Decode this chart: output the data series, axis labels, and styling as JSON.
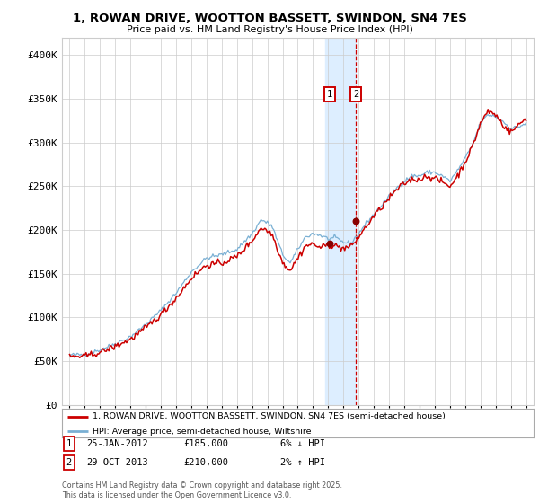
{
  "title": "1, ROWAN DRIVE, WOOTTON BASSETT, SWINDON, SN4 7ES",
  "subtitle": "Price paid vs. HM Land Registry's House Price Index (HPI)",
  "legend_line1": "1, ROWAN DRIVE, WOOTTON BASSETT, SWINDON, SN4 7ES (semi-detached house)",
  "legend_line2": "HPI: Average price, semi-detached house, Wiltshire",
  "transaction1_date": "25-JAN-2012",
  "transaction1_price": 185000,
  "transaction1_hpi": "6% ↓ HPI",
  "transaction2_date": "29-OCT-2013",
  "transaction2_price": 210000,
  "transaction2_hpi": "2% ↑ HPI",
  "footnote": "Contains HM Land Registry data © Crown copyright and database right 2025.\nThis data is licensed under the Open Government Licence v3.0.",
  "red_color": "#cc0000",
  "blue_color": "#7ab0d4",
  "shaded_color": "#ddeeff",
  "background_color": "#ffffff",
  "grid_color": "#cccccc",
  "ylim": [
    0,
    420000
  ],
  "yticks": [
    0,
    50000,
    100000,
    150000,
    200000,
    250000,
    300000,
    350000,
    400000
  ],
  "ytick_labels": [
    "£0",
    "£50K",
    "£100K",
    "£150K",
    "£200K",
    "£250K",
    "£300K",
    "£350K",
    "£400K"
  ],
  "transaction1_x": 2012.07,
  "transaction2_x": 2013.83,
  "transaction1_y": 185000,
  "transaction2_y": 210000,
  "shade_x1": 2011.8,
  "shade_x2": 2013.83,
  "xmin": 1994.5,
  "xmax": 2025.5
}
